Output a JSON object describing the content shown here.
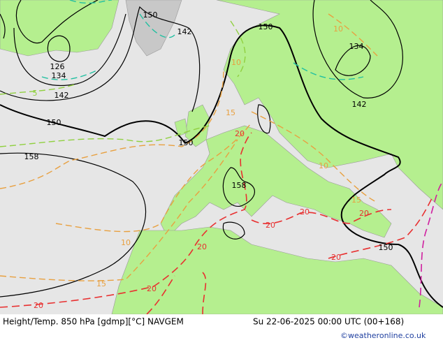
{
  "map": {
    "contour_labels": [
      "150",
      "142",
      "150",
      "126",
      "134",
      "142",
      "150",
      "150",
      "158",
      "158",
      "134",
      "142",
      "150",
      "10",
      "10",
      "10",
      "10",
      "15",
      "15",
      "15",
      "20",
      "20",
      "20",
      "20",
      "20",
      "20",
      "20",
      "20",
      "5"
    ],
    "footer": {
      "left": "Height/Temp. 850 hPa [gdmp][°C] NAVGEM",
      "right": "Su 22-06-2025 00:00 UTC (00+168)",
      "credit": "©weatheronline.co.uk"
    }
  }
}
